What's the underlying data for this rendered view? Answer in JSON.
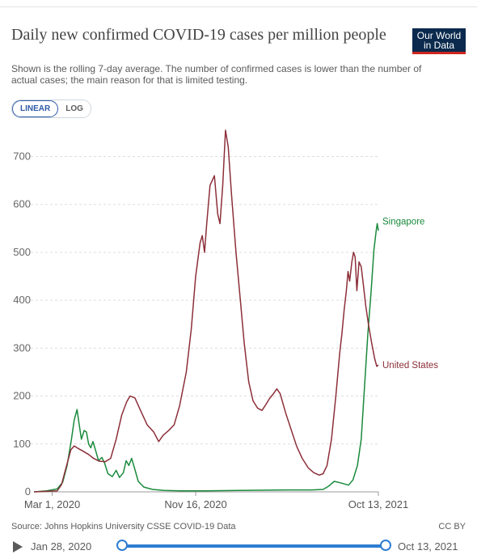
{
  "header": {
    "title": "Daily new confirmed COVID-19 cases per million people",
    "subtitle": "Shown is the rolling 7-day average. The number of confirmed cases is lower than the number of actual cases; the main reason for that is limited testing.",
    "logo_line1": "Our World",
    "logo_line2": "in Data"
  },
  "scale_toggle": {
    "linear_label": "LINEAR",
    "log_label": "LOG",
    "selected": "linear"
  },
  "footer": {
    "source": "Source: Johns Hopkins University CSSE COVID-19 Data",
    "license": "CC BY"
  },
  "timeline": {
    "start_label": "Jan 28, 2020",
    "end_label": "Oct 13, 2021"
  },
  "chart_data": {
    "type": "line",
    "title": "Daily new confirmed COVID-19 cases per million people",
    "x_type": "date",
    "x_range": [
      "2020-01-28",
      "2021-10-13"
    ],
    "x_ticks": [
      {
        "date": "2020-03-01",
        "label": "Mar 1, 2020"
      },
      {
        "date": "2020-11-16",
        "label": "Nov 16, 2020"
      },
      {
        "date": "2021-10-13",
        "label": "Oct 13, 2021"
      }
    ],
    "ylim": [
      0,
      760
    ],
    "y_ticks": [
      0,
      100,
      200,
      300,
      400,
      500,
      600,
      700
    ],
    "grid": true,
    "legend": "end-of-line labels",
    "series": [
      {
        "name": "Singapore",
        "color": "#1a8a3c",
        "points": [
          [
            "2020-01-28",
            0
          ],
          [
            "2020-02-20",
            2
          ],
          [
            "2020-03-10",
            6
          ],
          [
            "2020-03-20",
            20
          ],
          [
            "2020-03-28",
            55
          ],
          [
            "2020-04-05",
            110
          ],
          [
            "2020-04-10",
            150
          ],
          [
            "2020-04-15",
            172
          ],
          [
            "2020-04-19",
            140
          ],
          [
            "2020-04-23",
            110
          ],
          [
            "2020-04-28",
            128
          ],
          [
            "2020-05-02",
            125
          ],
          [
            "2020-05-06",
            100
          ],
          [
            "2020-05-10",
            92
          ],
          [
            "2020-05-14",
            105
          ],
          [
            "2020-05-19",
            85
          ],
          [
            "2020-05-24",
            65
          ],
          [
            "2020-05-30",
            72
          ],
          [
            "2020-06-04",
            60
          ],
          [
            "2020-06-10",
            38
          ],
          [
            "2020-06-18",
            32
          ],
          [
            "2020-06-25",
            45
          ],
          [
            "2020-07-01",
            30
          ],
          [
            "2020-07-08",
            40
          ],
          [
            "2020-07-13",
            65
          ],
          [
            "2020-07-18",
            55
          ],
          [
            "2020-07-23",
            70
          ],
          [
            "2020-07-28",
            50
          ],
          [
            "2020-08-04",
            22
          ],
          [
            "2020-08-14",
            10
          ],
          [
            "2020-08-30",
            5
          ],
          [
            "2020-09-20",
            3
          ],
          [
            "2020-10-20",
            2
          ],
          [
            "2020-12-01",
            2
          ],
          [
            "2021-02-01",
            3
          ],
          [
            "2021-05-01",
            4
          ],
          [
            "2021-06-15",
            4
          ],
          [
            "2021-07-05",
            5
          ],
          [
            "2021-07-15",
            12
          ],
          [
            "2021-07-25",
            22
          ],
          [
            "2021-08-08",
            18
          ],
          [
            "2021-08-20",
            14
          ],
          [
            "2021-08-28",
            25
          ],
          [
            "2021-09-05",
            55
          ],
          [
            "2021-09-12",
            110
          ],
          [
            "2021-09-18",
            220
          ],
          [
            "2021-09-24",
            330
          ],
          [
            "2021-09-30",
            420
          ],
          [
            "2021-10-05",
            505
          ],
          [
            "2021-10-09",
            545
          ],
          [
            "2021-10-11",
            560
          ],
          [
            "2021-10-13",
            545
          ]
        ]
      },
      {
        "name": "United States",
        "color": "#8c2f39",
        "points": [
          [
            "2020-01-28",
            0
          ],
          [
            "2020-03-10",
            2
          ],
          [
            "2020-03-18",
            15
          ],
          [
            "2020-03-26",
            50
          ],
          [
            "2020-04-04",
            88
          ],
          [
            "2020-04-10",
            96
          ],
          [
            "2020-04-18",
            90
          ],
          [
            "2020-04-26",
            85
          ],
          [
            "2020-05-06",
            78
          ],
          [
            "2020-05-15",
            70
          ],
          [
            "2020-05-25",
            64
          ],
          [
            "2020-06-05",
            63
          ],
          [
            "2020-06-15",
            70
          ],
          [
            "2020-06-25",
            110
          ],
          [
            "2020-07-05",
            160
          ],
          [
            "2020-07-14",
            188
          ],
          [
            "2020-07-20",
            200
          ],
          [
            "2020-07-29",
            196
          ],
          [
            "2020-08-08",
            170
          ],
          [
            "2020-08-20",
            140
          ],
          [
            "2020-09-01",
            125
          ],
          [
            "2020-09-10",
            105
          ],
          [
            "2020-09-18",
            118
          ],
          [
            "2020-09-28",
            128
          ],
          [
            "2020-10-08",
            140
          ],
          [
            "2020-10-18",
            180
          ],
          [
            "2020-10-30",
            250
          ],
          [
            "2020-11-08",
            340
          ],
          [
            "2020-11-16",
            450
          ],
          [
            "2020-11-24",
            520
          ],
          [
            "2020-11-28",
            535
          ],
          [
            "2020-12-02",
            500
          ],
          [
            "2020-12-06",
            560
          ],
          [
            "2020-12-12",
            640
          ],
          [
            "2020-12-20",
            660
          ],
          [
            "2020-12-26",
            580
          ],
          [
            "2020-12-30",
            560
          ],
          [
            "2021-01-04",
            640
          ],
          [
            "2021-01-09",
            755
          ],
          [
            "2021-01-14",
            720
          ],
          [
            "2021-01-20",
            620
          ],
          [
            "2021-01-28",
            500
          ],
          [
            "2021-02-05",
            400
          ],
          [
            "2021-02-12",
            310
          ],
          [
            "2021-02-20",
            230
          ],
          [
            "2021-02-28",
            190
          ],
          [
            "2021-03-08",
            175
          ],
          [
            "2021-03-16",
            170
          ],
          [
            "2021-03-22",
            180
          ],
          [
            "2021-03-30",
            195
          ],
          [
            "2021-04-06",
            205
          ],
          [
            "2021-04-12",
            215
          ],
          [
            "2021-04-18",
            205
          ],
          [
            "2021-04-28",
            165
          ],
          [
            "2021-05-08",
            130
          ],
          [
            "2021-05-18",
            95
          ],
          [
            "2021-05-28",
            70
          ],
          [
            "2021-06-08",
            50
          ],
          [
            "2021-06-18",
            40
          ],
          [
            "2021-06-28",
            35
          ],
          [
            "2021-07-05",
            38
          ],
          [
            "2021-07-12",
            55
          ],
          [
            "2021-07-20",
            110
          ],
          [
            "2021-07-28",
            200
          ],
          [
            "2021-08-04",
            290
          ],
          [
            "2021-08-08",
            330
          ],
          [
            "2021-08-12",
            380
          ],
          [
            "2021-08-16",
            420
          ],
          [
            "2021-08-19",
            460
          ],
          [
            "2021-08-22",
            440
          ],
          [
            "2021-08-26",
            480
          ],
          [
            "2021-08-29",
            500
          ],
          [
            "2021-09-01",
            490
          ],
          [
            "2021-09-04",
            420
          ],
          [
            "2021-09-08",
            480
          ],
          [
            "2021-09-12",
            470
          ],
          [
            "2021-09-16",
            430
          ],
          [
            "2021-09-20",
            390
          ],
          [
            "2021-09-25",
            350
          ],
          [
            "2021-10-01",
            310
          ],
          [
            "2021-10-06",
            280
          ],
          [
            "2021-10-10",
            262
          ],
          [
            "2021-10-13",
            265
          ]
        ]
      }
    ]
  }
}
